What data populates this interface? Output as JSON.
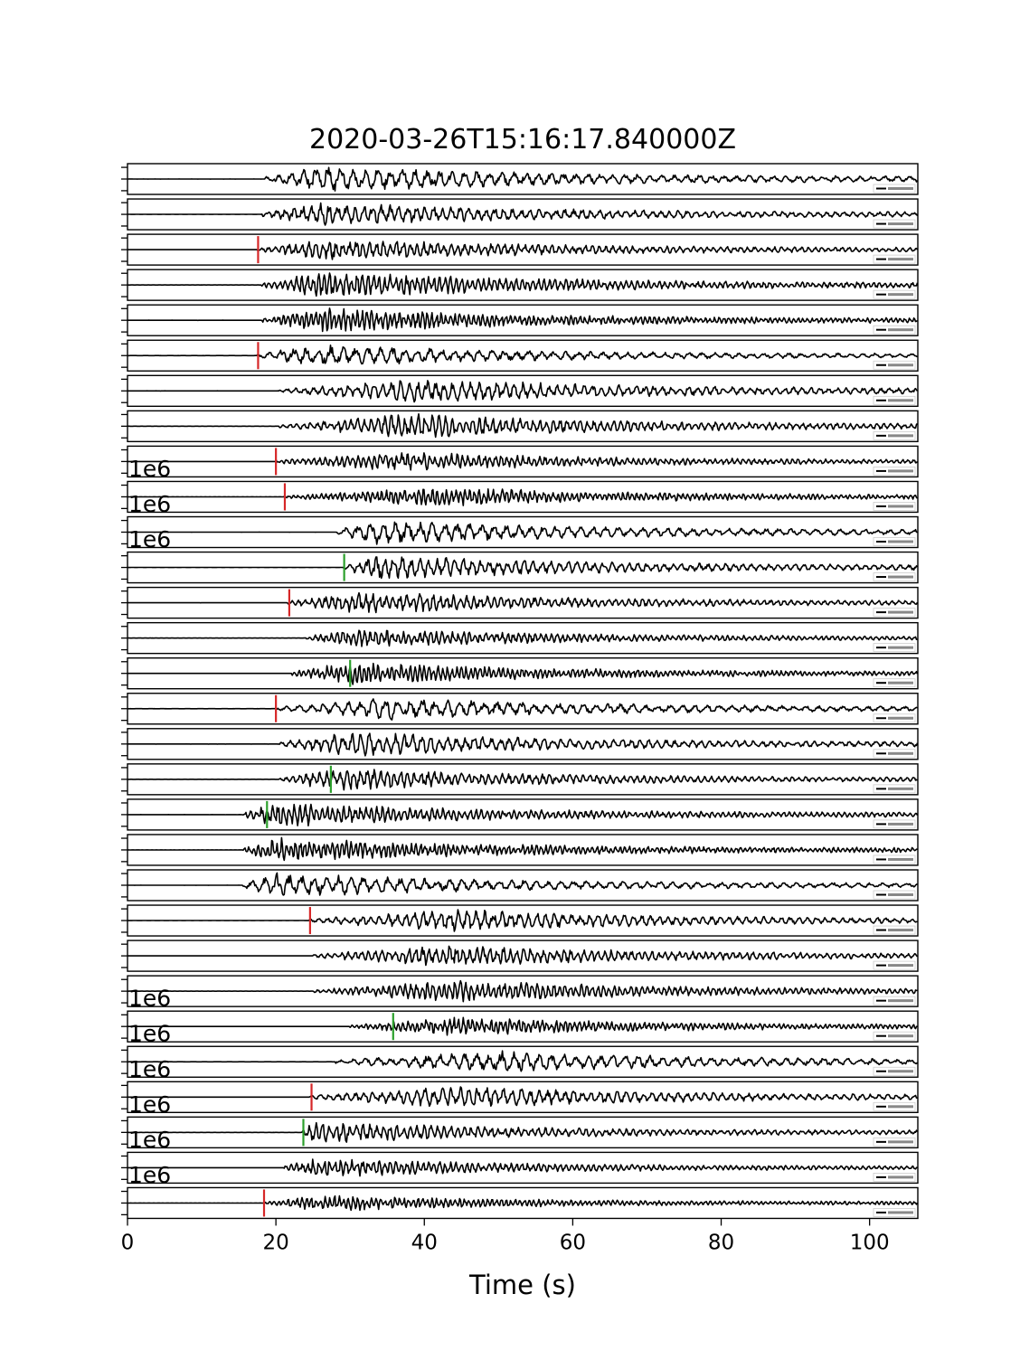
{
  "chart_data": {
    "type": "line",
    "title": "2020-03-26T15:16:17.840000Z",
    "xlabel": "Time (s)",
    "xlim": [
      0,
      106.5
    ],
    "x_ticks": [
      0,
      20,
      40,
      60,
      80,
      100
    ],
    "x_tick_labels": [
      "0",
      "20",
      "40",
      "60",
      "80",
      "100"
    ],
    "legend_placement": "lower-right of each panel",
    "colors": {
      "trace": "#000000",
      "p_pick": "#d62728",
      "s_pick": "#2ca02c"
    },
    "panels": [
      {
        "onset": 18.5,
        "peak": 27,
        "scale": 1.0,
        "pick": null,
        "pick_color": null,
        "sci": ""
      },
      {
        "onset": 18.0,
        "peak": 27,
        "scale": 0.9,
        "pick": null,
        "pick_color": null,
        "sci": ""
      },
      {
        "onset": 17.5,
        "peak": 28,
        "scale": 0.8,
        "pick": 17.6,
        "pick_color": "red",
        "sci": ""
      },
      {
        "onset": 18.0,
        "peak": 27,
        "scale": 1.0,
        "pick": null,
        "pick_color": null,
        "sci": ""
      },
      {
        "onset": 18.0,
        "peak": 26,
        "scale": 0.9,
        "pick": null,
        "pick_color": null,
        "sci": ""
      },
      {
        "onset": 17.5,
        "peak": 25,
        "scale": 0.8,
        "pick": 17.6,
        "pick_color": "red",
        "sci": ""
      },
      {
        "onset": 20.5,
        "peak": 40,
        "scale": 0.9,
        "pick": null,
        "pick_color": null,
        "sci": ""
      },
      {
        "onset": 20.5,
        "peak": 38,
        "scale": 0.9,
        "pick": null,
        "pick_color": null,
        "sci": ""
      },
      {
        "onset": 20.0,
        "peak": 36,
        "scale": 0.7,
        "pick": 20.0,
        "pick_color": "red",
        "sci": "1e6"
      },
      {
        "onset": 21.0,
        "peak": 43,
        "scale": 0.7,
        "pick": 21.2,
        "pick_color": "red",
        "sci": "1e6"
      },
      {
        "onset": 28.0,
        "peak": 34,
        "scale": 0.9,
        "pick": null,
        "pick_color": null,
        "sci": "1e6"
      },
      {
        "onset": 29.0,
        "peak": 34,
        "scale": 0.9,
        "pick": 29.2,
        "pick_color": "green",
        "sci": ""
      },
      {
        "onset": 21.5,
        "peak": 32,
        "scale": 0.8,
        "pick": 21.8,
        "pick_color": "red",
        "sci": ""
      },
      {
        "onset": 24.0,
        "peak": 31,
        "scale": 0.7,
        "pick": null,
        "pick_color": null,
        "sci": ""
      },
      {
        "onset": 22.0,
        "peak": 30,
        "scale": 0.8,
        "pick": 30.0,
        "pick_color": "green",
        "sci": ""
      },
      {
        "onset": 20.0,
        "peak": 36,
        "scale": 0.8,
        "pick": 20.0,
        "pick_color": "red",
        "sci": ""
      },
      {
        "onset": 20.5,
        "peak": 30,
        "scale": 0.9,
        "pick": null,
        "pick_color": null,
        "sci": ""
      },
      {
        "onset": 20.5,
        "peak": 28,
        "scale": 0.8,
        "pick": 27.4,
        "pick_color": "green",
        "sci": ""
      },
      {
        "onset": 15.5,
        "peak": 20,
        "scale": 0.9,
        "pick": 18.8,
        "pick_color": "green",
        "sci": ""
      },
      {
        "onset": 15.5,
        "peak": 20,
        "scale": 0.9,
        "pick": null,
        "pick_color": null,
        "sci": ""
      },
      {
        "onset": 15.5,
        "peak": 20,
        "scale": 0.9,
        "pick": null,
        "pick_color": null,
        "sci": ""
      },
      {
        "onset": 24.5,
        "peak": 44,
        "scale": 0.8,
        "pick": 24.6,
        "pick_color": "red",
        "sci": ""
      },
      {
        "onset": 25.0,
        "peak": 44,
        "scale": 0.8,
        "pick": null,
        "pick_color": null,
        "sci": ""
      },
      {
        "onset": 25.0,
        "peak": 44,
        "scale": 0.8,
        "pick": null,
        "pick_color": null,
        "sci": "1e6"
      },
      {
        "onset": 30.0,
        "peak": 44,
        "scale": 0.7,
        "pick": 35.8,
        "pick_color": "green",
        "sci": "1e6"
      },
      {
        "onset": 28.0,
        "peak": 50,
        "scale": 0.8,
        "pick": null,
        "pick_color": null,
        "sci": "1e6"
      },
      {
        "onset": 24.5,
        "peak": 45,
        "scale": 0.8,
        "pick": 24.8,
        "pick_color": "red",
        "sci": "1e6"
      },
      {
        "onset": 23.5,
        "peak": 25,
        "scale": 0.8,
        "pick": 23.7,
        "pick_color": "green",
        "sci": "1e6"
      },
      {
        "onset": 21.0,
        "peak": 25,
        "scale": 0.7,
        "pick": null,
        "pick_color": null,
        "sci": "1e6"
      },
      {
        "onset": 18.5,
        "peak": 26,
        "scale": 0.6,
        "pick": 18.4,
        "pick_color": "red",
        "sci": ""
      }
    ]
  }
}
